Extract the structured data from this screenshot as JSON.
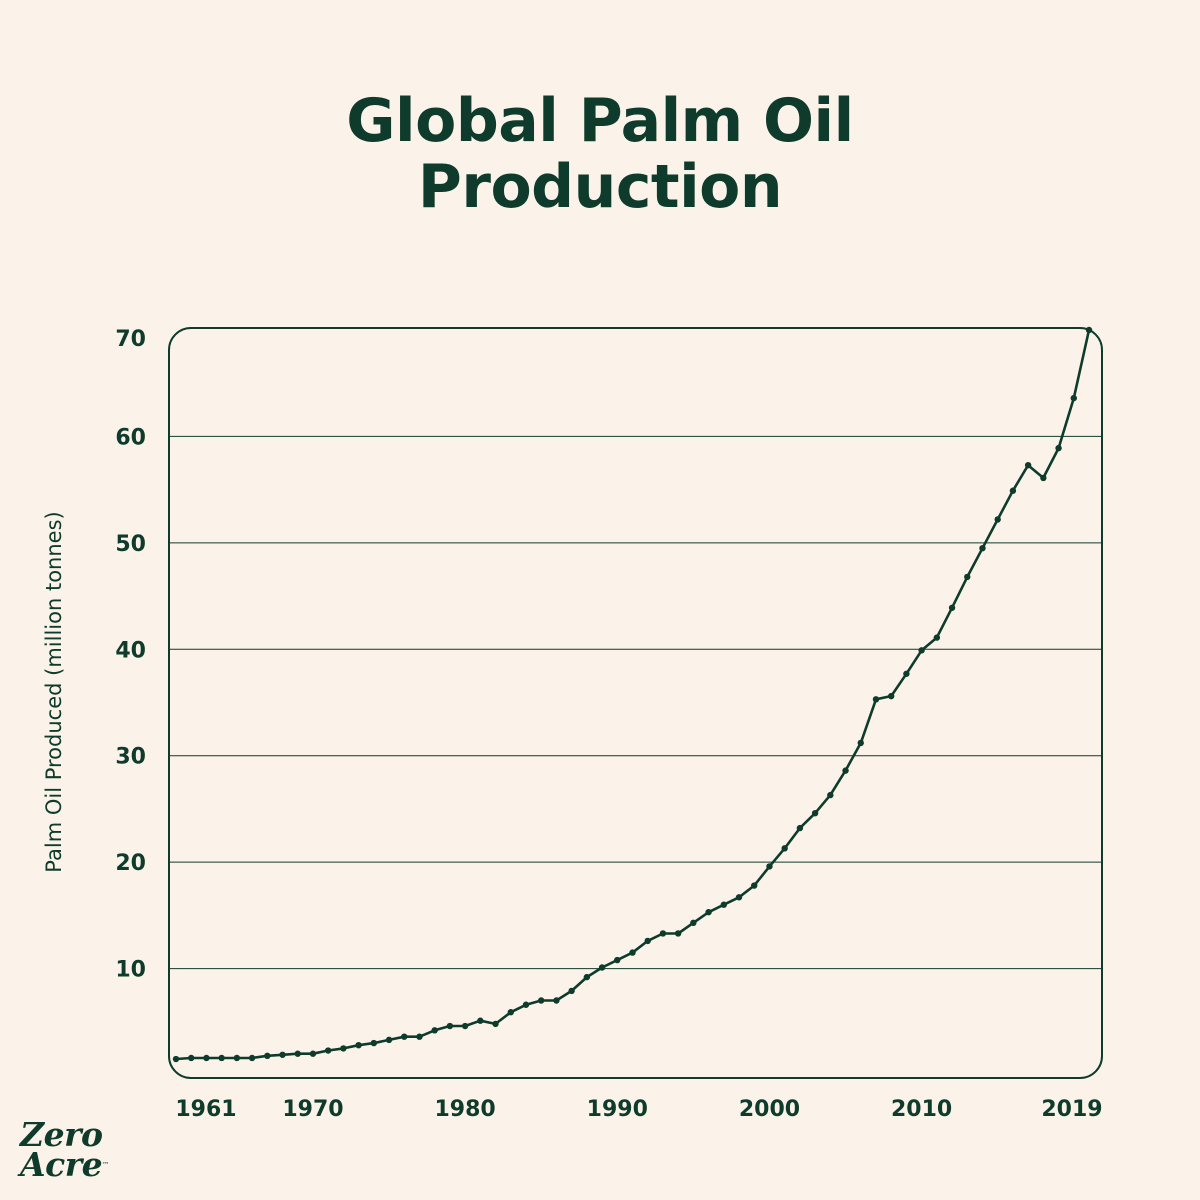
{
  "title": {
    "line1": "Global Palm Oil",
    "line2": "Production"
  },
  "logo": {
    "line1": "Zero",
    "line2": "Acre",
    "tm": "™"
  },
  "colors": {
    "background": "#fbf3e9",
    "ink": "#0e3b2b",
    "grid": "#0e3b2b"
  },
  "chart_data": {
    "type": "line",
    "title": "Global Palm Oil Production",
    "xlabel": "",
    "ylabel": "Palm Oil Produced (million tonnes)",
    "xlim": [
      1961,
      2021
    ],
    "ylim": [
      0,
      70
    ],
    "x_ticks": [
      1961,
      1970,
      1980,
      1990,
      2000,
      2010,
      2019
    ],
    "y_ticks": [
      10,
      20,
      30,
      40,
      50,
      60,
      70
    ],
    "grid": "horizontal",
    "series": [
      {
        "x": [
          1961,
          1962,
          1963,
          1964,
          1965,
          1966,
          1967,
          1968,
          1969,
          1970,
          1971,
          1972,
          1973,
          1974,
          1975,
          1976,
          1977,
          1978,
          1979,
          1980,
          1981,
          1982,
          1983,
          1984,
          1985,
          1986,
          1987,
          1988,
          1989,
          1990,
          1991,
          1992,
          1993,
          1994,
          1995,
          1996,
          1997,
          1998,
          1999,
          2000,
          2001,
          2002,
          2003,
          2004,
          2005,
          2006,
          2007,
          2008,
          2009,
          2010,
          2011,
          2012,
          2013,
          2014,
          2015,
          2016,
          2017,
          2018,
          2019,
          2020,
          2021
        ],
        "y": [
          1.5,
          1.6,
          1.6,
          1.6,
          1.6,
          1.6,
          1.8,
          1.9,
          2.0,
          2.0,
          2.3,
          2.5,
          2.8,
          3.0,
          3.3,
          3.6,
          3.6,
          4.2,
          4.6,
          4.6,
          5.1,
          4.8,
          5.9,
          6.6,
          7.0,
          7.0,
          7.9,
          9.2,
          10.1,
          10.8,
          11.5,
          12.6,
          13.3,
          13.3,
          14.3,
          15.3,
          16.0,
          16.7,
          17.8,
          19.6,
          21.3,
          23.2,
          24.6,
          26.3,
          28.6,
          31.2,
          35.3,
          35.6,
          37.7,
          39.9,
          41.1,
          43.9,
          46.8,
          49.5,
          52.2,
          54.9,
          57.3,
          56.1,
          58.9,
          63.6,
          70.0
        ]
      }
    ]
  }
}
